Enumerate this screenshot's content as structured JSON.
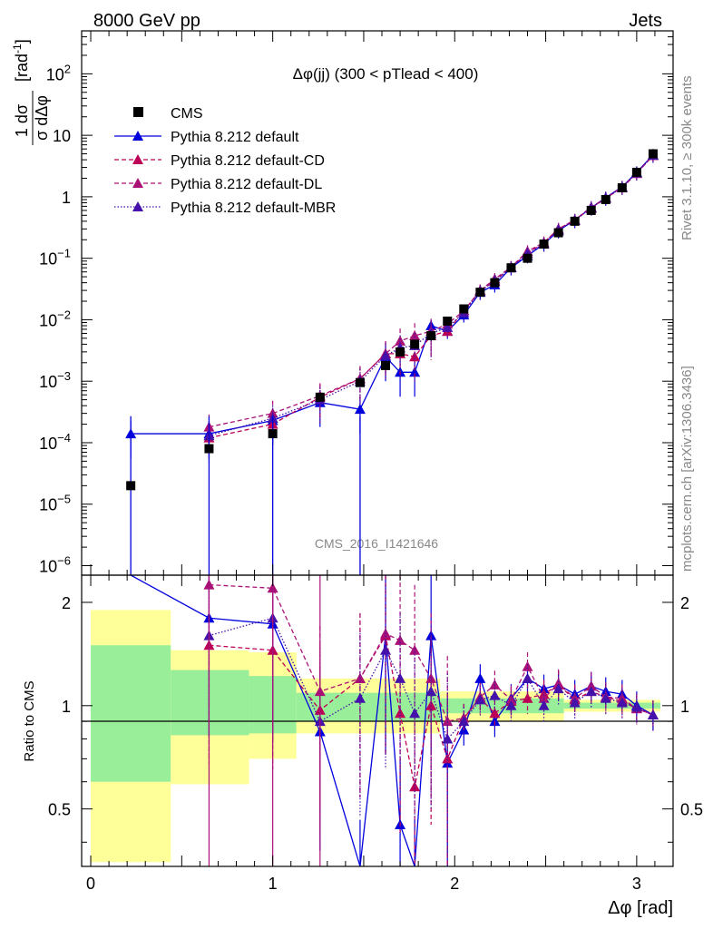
{
  "header": {
    "energy_label": "8000 GeV pp",
    "process_label": "Jets",
    "side_rivet": "Rivet 3.1.10, ≥ 300k events",
    "side_mcplots": "mcplots.cern.ch [arXiv:1306.3436]",
    "watermark": "CMS_2016_I1421646"
  },
  "chart_data": [
    {
      "type": "line",
      "name": "main-distribution",
      "title": "Δφ(jj) (300 < pTlead <  400)",
      "ylabel_num": "1 dσ",
      "ylabel_den": "σ dΔφ",
      "ylabel_unit": "[rad",
      "ylabel_unit_exp": "-1",
      "ylabel_close": "]",
      "yscale": "log",
      "ylim": [
        7e-07,
        500
      ],
      "xlim": [
        -0.05,
        3.2
      ],
      "ytick_labels": [
        {
          "value": 100,
          "base": "10",
          "exp": "2"
        },
        {
          "value": 10,
          "base": "10",
          "exp": ""
        },
        {
          "value": 1,
          "base": "1",
          "exp": ""
        },
        {
          "value": 0.1,
          "base": "10",
          "exp": "−1"
        },
        {
          "value": 0.01,
          "base": "10",
          "exp": "−2"
        },
        {
          "value": 0.001,
          "base": "10",
          "exp": "−3"
        },
        {
          "value": 0.0001,
          "base": "10",
          "exp": "−4"
        },
        {
          "value": 1e-05,
          "base": "10",
          "exp": "−5"
        },
        {
          "value": 1e-06,
          "base": "10",
          "exp": "−6"
        }
      ],
      "legend": [
        {
          "label": "CMS",
          "color": "#000000",
          "marker": "square",
          "style": "none"
        },
        {
          "label": "Pythia 8.212 default",
          "color": "#0000dd",
          "marker": "triangle",
          "style": "solid"
        },
        {
          "label": "Pythia 8.212 default-CD",
          "color": "#bb0055",
          "marker": "triangle",
          "style": "dashed"
        },
        {
          "label": "Pythia 8.212 default-DL",
          "color": "#aa1177",
          "marker": "triangle",
          "style": "dashed"
        },
        {
          "label": "Pythia 8.212 default-MBR",
          "color": "#4411aa",
          "marker": "triangle",
          "style": "dotted"
        }
      ],
      "cms_x": [
        0.22,
        0.65,
        1.0,
        1.26,
        1.48,
        1.62,
        1.7,
        1.78,
        1.87,
        1.96,
        2.05,
        2.14,
        2.22,
        2.31,
        2.4,
        2.49,
        2.57,
        2.66,
        2.75,
        2.83,
        2.92,
        3.0,
        3.09
      ],
      "cms_y": [
        2e-05,
        8e-05,
        0.00014,
        0.00055,
        0.00095,
        0.0018,
        0.003,
        0.004,
        0.0055,
        0.0095,
        0.015,
        0.028,
        0.04,
        0.07,
        0.1,
        0.17,
        0.26,
        0.4,
        0.6,
        0.9,
        1.4,
        2.5,
        5.0
      ],
      "series": [
        {
          "name": "Pythia 8.212 default",
          "color": "#0000dd",
          "dash": "",
          "x": [
            0.22,
            0.65,
            1.0,
            1.26,
            1.48,
            1.62,
            1.7,
            1.78,
            1.87,
            1.96,
            2.05,
            2.14,
            2.22,
            2.31,
            2.4,
            2.49,
            2.57,
            2.66,
            2.75,
            2.83,
            2.92,
            3.0,
            3.09
          ],
          "y": [
            0.00014,
            0.00014,
            0.00023,
            0.00045,
            0.00035,
            0.0025,
            0.0014,
            0.0014,
            0.008,
            0.0065,
            0.012,
            0.028,
            0.037,
            0.07,
            0.11,
            0.17,
            0.28,
            0.42,
            0.66,
            0.97,
            1.45,
            2.5,
            4.8
          ]
        },
        {
          "name": "Pythia 8.212 default-CD",
          "color": "#bb0055",
          "dash": "5,3",
          "x": [
            0.65,
            1.0,
            1.26,
            1.48,
            1.62,
            1.7,
            1.78,
            1.87,
            1.96,
            2.05,
            2.14,
            2.22,
            2.31,
            2.4,
            2.49,
            2.57,
            2.66,
            2.75,
            2.83,
            2.92,
            3.0,
            3.09
          ],
          "y": [
            0.00012,
            0.0002,
            0.00055,
            0.0011,
            0.0028,
            0.0028,
            0.0025,
            0.0055,
            0.0065,
            0.014,
            0.03,
            0.042,
            0.072,
            0.12,
            0.18,
            0.3,
            0.42,
            0.65,
            0.95,
            1.4,
            2.4,
            4.7
          ]
        },
        {
          "name": "Pythia 8.212 default-DL",
          "color": "#aa1177",
          "dash": "5,3",
          "x": [
            0.65,
            1.0,
            1.26,
            1.48,
            1.62,
            1.7,
            1.78,
            1.87,
            1.96,
            2.05,
            2.14,
            2.22,
            2.31,
            2.4,
            2.49,
            2.57,
            2.66,
            2.75,
            2.83,
            2.92,
            3.0,
            3.09
          ],
          "y": [
            0.00018,
            0.0003,
            0.00058,
            0.0011,
            0.0028,
            0.0045,
            0.0055,
            0.0065,
            0.0085,
            0.014,
            0.03,
            0.046,
            0.072,
            0.13,
            0.18,
            0.3,
            0.42,
            0.68,
            0.95,
            1.45,
            2.4,
            4.7
          ]
        },
        {
          "name": "Pythia 8.212 default-MBR",
          "color": "#4411aa",
          "dash": "1.5,2",
          "x": [
            0.65,
            1.0,
            1.26,
            1.48,
            1.62,
            1.7,
            1.78,
            1.87,
            1.96,
            2.05,
            2.14,
            2.22,
            2.31,
            2.4,
            2.49,
            2.57,
            2.66,
            2.75,
            2.83,
            2.92,
            3.0,
            3.09
          ],
          "y": [
            0.00013,
            0.00025,
            0.0005,
            0.001,
            0.0026,
            0.0035,
            0.0038,
            0.006,
            0.0075,
            0.013,
            0.029,
            0.043,
            0.071,
            0.12,
            0.17,
            0.29,
            0.41,
            0.66,
            0.95,
            1.42,
            2.45,
            4.75
          ]
        }
      ]
    },
    {
      "type": "line",
      "name": "ratio",
      "ylabel": "Ratio to CMS",
      "yscale": "log",
      "ylim": [
        0.34,
        2.4
      ],
      "xlim": [
        -0.05,
        3.2
      ],
      "xlabel": "Δφ [rad]",
      "xtick_labels": [
        {
          "value": 0,
          "label": "0"
        },
        {
          "value": 1,
          "label": "1"
        },
        {
          "value": 2,
          "label": "2"
        },
        {
          "value": 3,
          "label": "3"
        }
      ],
      "ytick_labels": [
        {
          "value": 0.5,
          "label": "0.5"
        },
        {
          "value": 1,
          "label": "1"
        },
        {
          "value": 2,
          "label": "2"
        }
      ],
      "bands": [
        {
          "x0": 0.0,
          "x1": 0.44,
          "yel_lo": 0.35,
          "yel_hi": 1.9,
          "grn_lo": 0.6,
          "grn_hi": 1.5
        },
        {
          "x0": 0.44,
          "x1": 0.87,
          "yel_lo": 0.59,
          "yel_hi": 1.45,
          "grn_lo": 0.82,
          "grn_hi": 1.27
        },
        {
          "x0": 0.87,
          "x1": 1.13,
          "yel_lo": 0.7,
          "yel_hi": 1.43,
          "grn_lo": 0.83,
          "grn_hi": 1.22
        },
        {
          "x0": 1.13,
          "x1": 1.92,
          "yel_lo": 0.83,
          "yel_hi": 1.2,
          "grn_lo": 0.9,
          "grn_hi": 1.09
        },
        {
          "x0": 1.92,
          "x1": 2.6,
          "yel_lo": 0.9,
          "yel_hi": 1.1,
          "grn_lo": 0.95,
          "grn_hi": 1.05
        },
        {
          "x0": 2.6,
          "x1": 3.13,
          "yel_lo": 0.96,
          "yel_hi": 1.04,
          "grn_lo": 0.98,
          "grn_hi": 1.02
        }
      ],
      "series": [
        {
          "name": "Pythia 8.212 default",
          "color": "#0000dd",
          "dash": "",
          "x": [
            0.22,
            0.65,
            1.0,
            1.26,
            1.48,
            1.62,
            1.7,
            1.78,
            1.87,
            1.96,
            2.05,
            2.14,
            2.22,
            2.31,
            2.4,
            2.49,
            2.57,
            2.66,
            2.75,
            2.83,
            2.92,
            3.0,
            3.09
          ],
          "y": [
            7.0,
            1.8,
            1.73,
            0.84,
            0.3,
            1.6,
            0.45,
            0.3,
            1.6,
            0.68,
            0.85,
            1.2,
            0.9,
            1.05,
            1.2,
            1.12,
            1.15,
            1.08,
            1.14,
            1.1,
            1.08,
            1.0,
            0.94
          ]
        },
        {
          "name": "Pythia 8.212 default-CD",
          "color": "#bb0055",
          "dash": "5,3",
          "x": [
            0.65,
            1.0,
            1.26,
            1.48,
            1.62,
            1.7,
            1.78,
            1.87,
            1.96,
            2.05,
            2.14,
            2.22,
            2.31,
            2.4,
            2.49,
            2.57,
            2.66,
            2.75,
            2.83,
            2.92,
            3.0,
            3.09
          ],
          "y": [
            1.5,
            1.45,
            0.97,
            1.2,
            1.6,
            0.95,
            0.58,
            1.0,
            0.7,
            0.92,
            1.05,
            0.95,
            1.03,
            1.05,
            1.08,
            1.15,
            1.04,
            1.1,
            1.06,
            1.03,
            0.98,
            0.94
          ]
        },
        {
          "name": "Pythia 8.212 default-DL",
          "color": "#aa1177",
          "dash": "5,3",
          "x": [
            0.65,
            1.0,
            1.26,
            1.48,
            1.62,
            1.7,
            1.78,
            1.87,
            1.96,
            2.05,
            2.14,
            2.22,
            2.31,
            2.4,
            2.49,
            2.57,
            2.66,
            2.75,
            2.83,
            2.92,
            3.0,
            3.09
          ],
          "y": [
            2.25,
            2.2,
            1.1,
            1.2,
            1.62,
            1.55,
            1.45,
            1.2,
            0.9,
            0.92,
            1.06,
            1.15,
            1.04,
            1.3,
            1.05,
            1.16,
            1.05,
            1.14,
            1.06,
            1.05,
            0.98,
            0.94
          ]
        },
        {
          "name": "Pythia 8.212 default-MBR",
          "color": "#4411aa",
          "dash": "1.5,2",
          "x": [
            0.65,
            1.0,
            1.26,
            1.48,
            1.62,
            1.7,
            1.78,
            1.87,
            1.96,
            2.05,
            2.14,
            2.22,
            2.31,
            2.4,
            2.49,
            2.57,
            2.66,
            2.75,
            2.83,
            2.92,
            3.0,
            3.09
          ],
          "y": [
            1.6,
            1.8,
            0.9,
            1.05,
            1.45,
            1.2,
            0.95,
            1.1,
            0.8,
            0.9,
            1.04,
            1.07,
            1.0,
            1.2,
            1.0,
            1.12,
            1.02,
            1.1,
            1.05,
            1.02,
            0.99,
            0.94
          ]
        }
      ]
    }
  ]
}
